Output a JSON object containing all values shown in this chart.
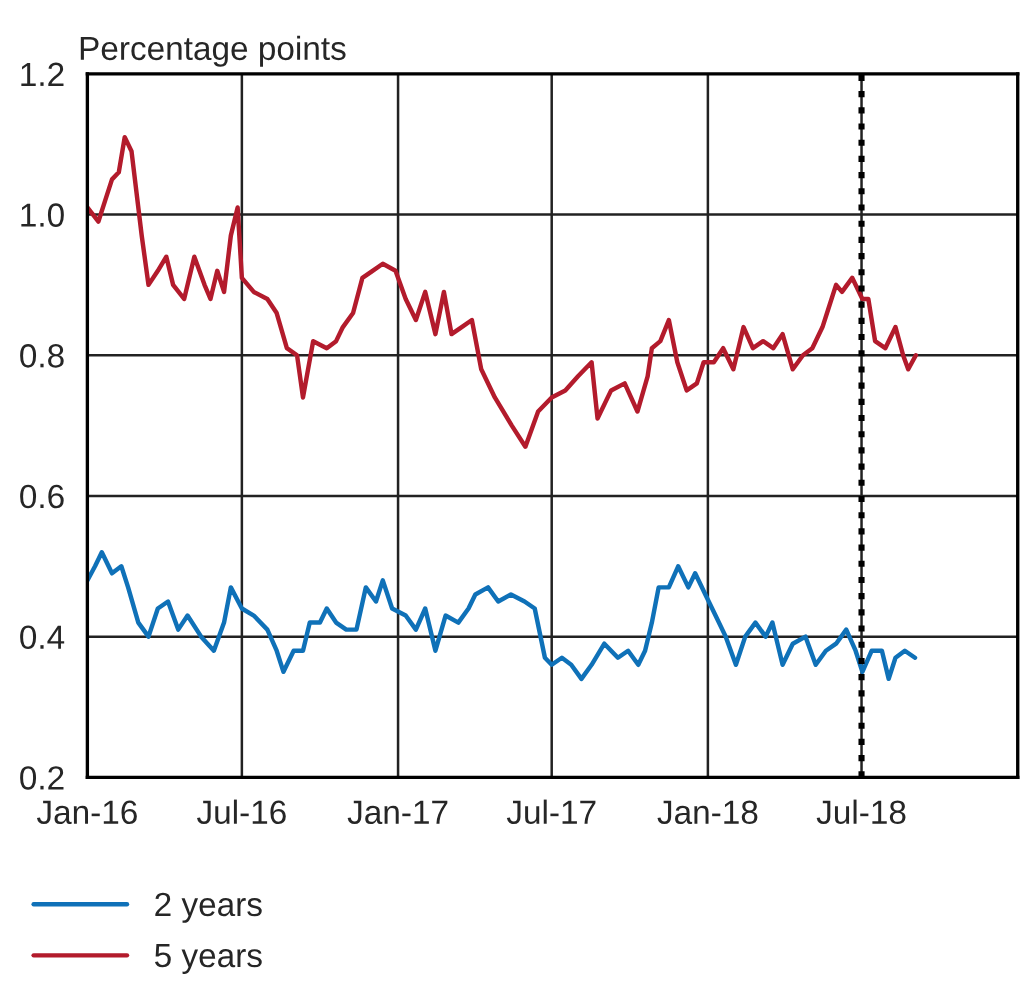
{
  "chart_data": {
    "type": "line",
    "ylabel": "Percentage points",
    "xlim": [
      "2016-01-01",
      "2019-01-01"
    ],
    "xticks": [
      {
        "value": "2016-01-01",
        "label": "Jan-16"
      },
      {
        "value": "2016-07-01",
        "label": "Jul-16"
      },
      {
        "value": "2017-01-01",
        "label": "Jan-17"
      },
      {
        "value": "2017-07-01",
        "label": "Jul-17"
      },
      {
        "value": "2018-01-01",
        "label": "Jan-18"
      },
      {
        "value": "2018-07-01",
        "label": "Jul-18"
      }
    ],
    "ylim": [
      0.2,
      1.2
    ],
    "yticks": [
      0.2,
      0.4,
      0.6,
      0.8,
      {
        "value": 1,
        "label": "1.0"
      },
      1.2
    ],
    "grid": true,
    "legend": "bottom",
    "line_style": "solid",
    "marker": "none",
    "ref_lines": [
      {
        "axis": "x",
        "value": "2018-07-01",
        "color": "#000000",
        "line_style": "dotted"
      }
    ],
    "series": [
      {
        "name": "2 years",
        "color": "#0f71b8",
        "x": [
          "2016-01-01",
          "2016-01-10",
          "2016-01-18",
          "2016-01-30",
          "2016-02-10",
          "2016-02-18",
          "2016-03-01",
          "2016-03-13",
          "2016-03-24",
          "2016-04-05",
          "2016-04-17",
          "2016-04-28",
          "2016-05-14",
          "2016-05-29",
          "2016-06-10",
          "2016-06-18",
          "2016-07-01",
          "2016-07-15",
          "2016-07-31",
          "2016-08-11",
          "2016-08-19",
          "2016-08-31",
          "2016-09-11",
          "2016-09-19",
          "2016-10-01",
          "2016-10-09",
          "2016-10-20",
          "2016-11-01",
          "2016-11-13",
          "2016-11-24",
          "2016-12-06",
          "2016-12-14",
          "2016-12-25",
          "2017-01-10",
          "2017-01-22",
          "2017-02-02",
          "2017-02-14",
          "2017-02-26",
          "2017-03-13",
          "2017-03-25",
          "2017-04-02",
          "2017-04-17",
          "2017-04-29",
          "2017-05-14",
          "2017-05-30",
          "2017-06-11",
          "2017-06-23",
          "2017-07-01",
          "2017-07-13",
          "2017-07-24",
          "2017-08-05",
          "2017-08-17",
          "2017-09-01",
          "2017-09-17",
          "2017-09-29",
          "2017-10-11",
          "2017-10-19",
          "2017-10-27",
          "2017-11-04",
          "2017-11-16",
          "2017-11-27",
          "2017-12-09",
          "2017-12-17",
          "2017-12-29",
          "2018-01-10",
          "2018-01-22",
          "2018-02-03",
          "2018-02-14",
          "2018-02-26",
          "2018-03-10",
          "2018-03-18",
          "2018-03-30",
          "2018-04-11",
          "2018-04-26",
          "2018-05-08",
          "2018-05-20",
          "2018-06-01",
          "2018-06-13",
          "2018-06-24",
          "2018-07-02",
          "2018-07-13",
          "2018-07-25",
          "2018-08-02",
          "2018-08-10",
          "2018-08-21",
          "2018-09-02"
        ],
        "values": [
          0.48,
          0.5,
          0.52,
          0.49,
          0.5,
          0.47,
          0.42,
          0.4,
          0.44,
          0.45,
          0.41,
          0.43,
          0.4,
          0.38,
          0.42,
          0.47,
          0.44,
          0.43,
          0.41,
          0.38,
          0.35,
          0.38,
          0.38,
          0.42,
          0.42,
          0.44,
          0.42,
          0.41,
          0.41,
          0.47,
          0.45,
          0.48,
          0.44,
          0.43,
          0.41,
          0.44,
          0.38,
          0.43,
          0.42,
          0.44,
          0.46,
          0.47,
          0.45,
          0.46,
          0.45,
          0.44,
          0.37,
          0.36,
          0.37,
          0.36,
          0.34,
          0.36,
          0.39,
          0.37,
          0.38,
          0.36,
          0.38,
          0.42,
          0.47,
          0.47,
          0.5,
          0.47,
          0.49,
          0.46,
          0.43,
          0.4,
          0.36,
          0.4,
          0.42,
          0.4,
          0.42,
          0.36,
          0.39,
          0.4,
          0.36,
          0.38,
          0.39,
          0.41,
          0.38,
          0.35,
          0.38,
          0.38,
          0.34,
          0.37,
          0.38,
          0.37
        ]
      },
      {
        "name": "5 years",
        "color": "#b31b2c",
        "x": [
          "2016-01-01",
          "2016-01-14",
          "2016-01-22",
          "2016-01-30",
          "2016-02-07",
          "2016-02-14",
          "2016-02-22",
          "2016-03-05",
          "2016-03-13",
          "2016-03-24",
          "2016-04-03",
          "2016-04-11",
          "2016-04-24",
          "2016-05-06",
          "2016-05-18",
          "2016-05-25",
          "2016-06-02",
          "2016-06-10",
          "2016-06-18",
          "2016-06-26",
          "2016-07-01",
          "2016-07-15",
          "2016-07-31",
          "2016-08-11",
          "2016-08-23",
          "2016-09-04",
          "2016-09-11",
          "2016-09-23",
          "2016-10-09",
          "2016-10-20",
          "2016-10-28",
          "2016-11-09",
          "2016-11-20",
          "2016-12-02",
          "2016-12-14",
          "2016-12-29",
          "2017-01-10",
          "2017-01-22",
          "2017-02-02",
          "2017-02-14",
          "2017-02-24",
          "2017-03-05",
          "2017-03-17",
          "2017-03-29",
          "2017-04-09",
          "2017-04-25",
          "2017-05-15",
          "2017-05-31",
          "2017-06-15",
          "2017-07-01",
          "2017-07-17",
          "2017-08-01",
          "2017-08-17",
          "2017-08-24",
          "2017-09-09",
          "2017-09-25",
          "2017-10-10",
          "2017-10-22",
          "2017-10-27",
          "2017-11-06",
          "2017-11-16",
          "2017-11-26",
          "2017-12-07",
          "2017-12-19",
          "2017-12-27",
          "2018-01-08",
          "2018-01-19",
          "2018-01-31",
          "2018-02-12",
          "2018-02-23",
          "2018-03-07",
          "2018-03-19",
          "2018-03-30",
          "2018-04-11",
          "2018-04-23",
          "2018-05-04",
          "2018-05-16",
          "2018-05-24",
          "2018-06-01",
          "2018-06-08",
          "2018-06-20",
          "2018-07-02",
          "2018-07-09",
          "2018-07-17",
          "2018-07-29",
          "2018-08-10",
          "2018-08-19",
          "2018-08-25",
          "2018-09-03"
        ],
        "values": [
          1.01,
          0.99,
          1.02,
          1.05,
          1.06,
          1.11,
          1.09,
          0.97,
          0.9,
          0.92,
          0.94,
          0.9,
          0.88,
          0.94,
          0.9,
          0.88,
          0.92,
          0.89,
          0.97,
          1.01,
          0.91,
          0.89,
          0.88,
          0.86,
          0.81,
          0.8,
          0.74,
          0.82,
          0.81,
          0.82,
          0.84,
          0.86,
          0.91,
          0.92,
          0.93,
          0.92,
          0.88,
          0.85,
          0.89,
          0.83,
          0.89,
          0.83,
          0.84,
          0.85,
          0.78,
          0.74,
          0.7,
          0.67,
          0.72,
          0.74,
          0.75,
          0.77,
          0.79,
          0.71,
          0.75,
          0.76,
          0.72,
          0.77,
          0.81,
          0.82,
          0.85,
          0.79,
          0.75,
          0.76,
          0.79,
          0.79,
          0.81,
          0.78,
          0.84,
          0.81,
          0.82,
          0.81,
          0.83,
          0.78,
          0.8,
          0.81,
          0.84,
          0.87,
          0.9,
          0.89,
          0.91,
          0.88,
          0.88,
          0.82,
          0.81,
          0.84,
          0.8,
          0.78,
          0.8
        ]
      }
    ]
  }
}
